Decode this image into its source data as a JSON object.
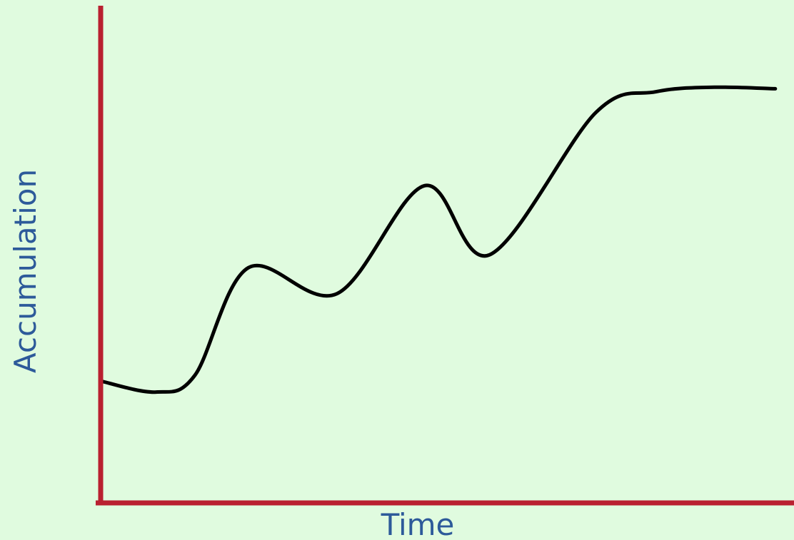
{
  "chart_data": {
    "type": "line",
    "title": "",
    "xlabel": "Time",
    "ylabel": "Accumulation",
    "xlim": [
      0,
      100
    ],
    "ylim": [
      0,
      100
    ],
    "grid": false,
    "legend": "none",
    "tick_labels": false,
    "series": [
      {
        "values": [
          [
            0,
            24.5
          ],
          [
            8,
            22.3
          ],
          [
            13.6,
            25.7
          ],
          [
            21.3,
            47.3
          ],
          [
            34.1,
            42.1
          ],
          [
            46.7,
            63.8
          ],
          [
            56.1,
            49.9
          ],
          [
            71.4,
            78.5
          ],
          [
            80.1,
            82.7
          ],
          [
            88.5,
            83.6
          ],
          [
            97.3,
            83.3
          ]
        ]
      }
    ],
    "colors": {
      "background": "#e0fbdf",
      "axis": "#b92030",
      "line": "#000000",
      "label": "#2d5a9a"
    }
  }
}
